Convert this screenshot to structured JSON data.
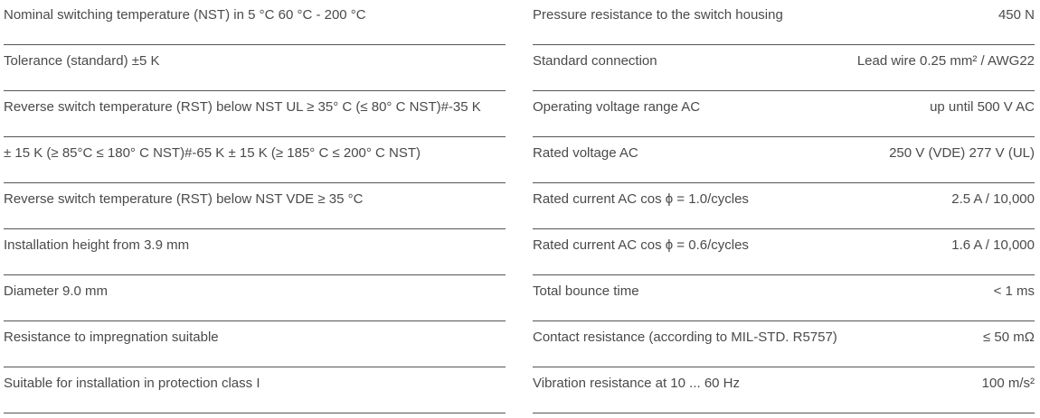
{
  "left": [
    "Nominal switching temperature (NST) in 5 °C 60 °C - 200 °C",
    "Tolerance (standard) ±5 K",
    "Reverse switch temperature (RST) below NST UL ≥ 35° C (≤ 80° C NST)#-35 K",
    "± 15 K (≥ 85°C ≤ 180° C NST)#-65 K ± 15 K (≥ 185° C ≤ 200° C NST)",
    "Reverse switch temperature (RST) below NST VDE ≥ 35 °C",
    "Installation height from 3.9 mm",
    "Diameter 9.0 mm",
    "Resistance to impregnation suitable",
    "Suitable for installation in protection class I"
  ],
  "right": [
    {
      "label": "Pressure resistance to the switch housing",
      "value": "450 N"
    },
    {
      "label": "Standard connection",
      "value": "Lead wire 0.25 mm² / AWG22"
    },
    {
      "label": "Operating voltage range AC",
      "value": "up until 500 V AC"
    },
    {
      "label": "Rated voltage AC",
      "value": "250 V (VDE) 277 V (UL)"
    },
    {
      "label": "Rated current AC cos ϕ = 1.0/cycles",
      "value": "2.5 A / 10,000"
    },
    {
      "label": "Rated current AC cos ϕ = 0.6/cycles",
      "value": "1.6 A / 10,000"
    },
    {
      "label": "Total bounce time",
      "value": "< 1 ms"
    },
    {
      "label": "Contact resistance (according to MIL-STD. R5757)",
      "value": "≤ 50 mΩ"
    },
    {
      "label": "Vibration resistance at 10 ... 60 Hz",
      "value": "100 m/s²"
    }
  ]
}
